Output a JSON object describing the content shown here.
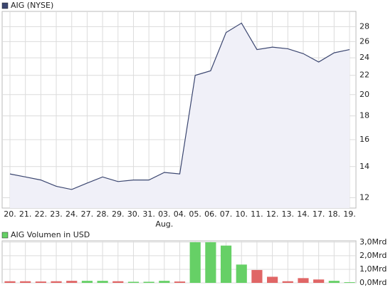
{
  "chart_data": [
    {
      "type": "area",
      "categories": [
        "20.",
        "21.",
        "22.",
        "23.",
        "24.",
        "27.",
        "28.",
        "29.",
        "30.",
        "31.",
        "03.",
        "04.",
        "05.",
        "06.",
        "07.",
        "10.",
        "11.",
        "12.",
        "13.",
        "14.",
        "17.",
        "18.",
        "19."
      ],
      "annotation": "Aug.",
      "series": [
        {
          "name": "AIG (NYSE)",
          "color": "#3b4670",
          "values": [
            13.5,
            13.3,
            13.1,
            12.7,
            12.5,
            12.9,
            13.3,
            13.0,
            13.1,
            13.1,
            13.6,
            13.5,
            22.0,
            22.5,
            27.2,
            28.5,
            25.0,
            25.3,
            25.1,
            24.5,
            23.5,
            24.6,
            25.0
          ]
        }
      ],
      "fill": "#f0f0f8",
      "log_scale": true,
      "ylim": [
        11.4,
        30.2
      ],
      "yticks": [
        12,
        14,
        16,
        18,
        20,
        22,
        24,
        26,
        28
      ],
      "grid": true
    },
    {
      "type": "bar",
      "series": [
        {
          "name": "AIG Volumen in USD",
          "color": "#66d066",
          "values": [
            0.12,
            0.12,
            0.1,
            0.12,
            0.15,
            0.15,
            0.15,
            0.12,
            0.08,
            0.08,
            0.15,
            0.1,
            3.0,
            3.0,
            2.75,
            1.35,
            0.95,
            0.45,
            0.12,
            0.35,
            0.25,
            0.15,
            0.05
          ],
          "colors": [
            "#e06666",
            "#e06666",
            "#e06666",
            "#e06666",
            "#e06666",
            "#66d066",
            "#66d066",
            "#e06666",
            "#66d066",
            "#66d066",
            "#66d066",
            "#e06666",
            "#66d066",
            "#66d066",
            "#66d066",
            "#66d066",
            "#e06666",
            "#e06666",
            "#e06666",
            "#e06666",
            "#e06666",
            "#66d066",
            "#66d066"
          ]
        }
      ],
      "ylim": [
        0,
        3.1
      ],
      "yticks": [
        {
          "value": 0,
          "label": "0,0Mrd"
        },
        {
          "value": 1,
          "label": "1,0Mrd"
        },
        {
          "value": 2,
          "label": "2,0Mrd"
        },
        {
          "value": 3,
          "label": "3,0Mrd"
        }
      ],
      "grid": true
    }
  ]
}
